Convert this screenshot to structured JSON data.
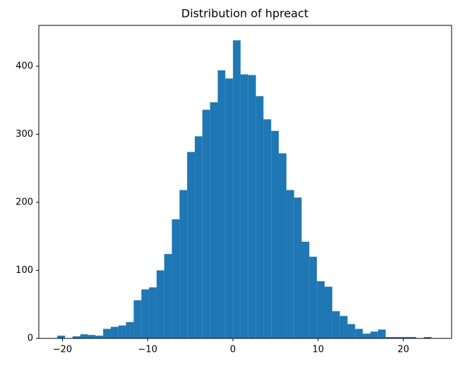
{
  "chart_data": {
    "type": "histogram",
    "title": "Distribution of hpreact",
    "color": "#1f77b4",
    "bins": [
      -20.6,
      -19.7,
      -18.81,
      -17.91,
      -17.02,
      -16.12,
      -15.22,
      -14.33,
      -13.43,
      -12.54,
      -11.64,
      -10.74,
      -9.85,
      -8.95,
      -8.06,
      -7.16,
      -6.26,
      -5.37,
      -4.47,
      -3.58,
      -2.68,
      -1.78,
      -0.89,
      0.01,
      0.9,
      1.8,
      2.7,
      3.59,
      4.49,
      5.38,
      6.28,
      7.18,
      8.07,
      8.97,
      9.86,
      10.76,
      11.66,
      12.55,
      13.45,
      14.34,
      15.24,
      16.14,
      17.03,
      17.93,
      18.82,
      19.72,
      20.62,
      21.51,
      22.41,
      23.3,
      24.2
    ],
    "values": [
      4,
      0,
      3,
      6,
      5,
      4,
      14,
      17,
      19,
      24,
      56,
      72,
      75,
      100,
      124,
      175,
      218,
      274,
      297,
      336,
      347,
      394,
      382,
      438,
      388,
      387,
      356,
      322,
      305,
      272,
      218,
      207,
      142,
      120,
      84,
      76,
      40,
      33,
      21,
      14,
      7,
      10,
      13,
      2,
      2,
      2,
      2,
      0,
      2,
      0
    ],
    "xlim": [
      -22.77,
      25.66
    ],
    "ylim": [
      0,
      460
    ],
    "xticks": [
      {
        "value": -20,
        "label": "−20"
      },
      {
        "value": -10,
        "label": "−10"
      },
      0,
      10,
      20
    ],
    "yticks": [
      0,
      100,
      200,
      300,
      400
    ]
  }
}
